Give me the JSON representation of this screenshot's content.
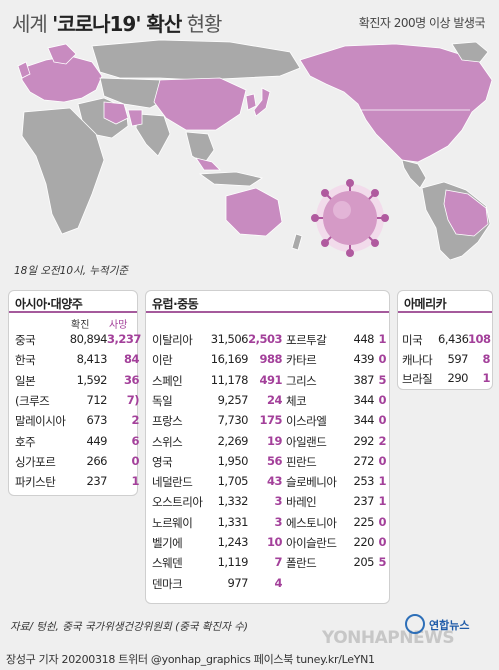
{
  "header": {
    "title_prefix": "세계 ",
    "title_main": "'코로나19' 확산",
    "title_suffix": " 현황",
    "subtitle": "확진자 200명 이상 발생국"
  },
  "date_note": "18일 오전10시, 누적기준",
  "colors": {
    "accent": "#a3409a",
    "map_highlight": "#c88bc0",
    "map_base": "#a9a9a9",
    "virus": "#b05a9f"
  },
  "asia": {
    "title": "아시아·대양주",
    "col_confirmed": "확진",
    "col_deaths": "사망",
    "rows": [
      {
        "name": "중국",
        "confirmed": "80,894",
        "deaths": "3,237"
      },
      {
        "name": "한국",
        "confirmed": "8,413",
        "deaths": "84"
      },
      {
        "name": "일본",
        "confirmed": "1,592",
        "deaths": "36"
      },
      {
        "name": "(크루즈",
        "confirmed": "712",
        "deaths": "7)"
      },
      {
        "name": "말레이시아",
        "confirmed": "673",
        "deaths": "2"
      },
      {
        "name": "호주",
        "confirmed": "449",
        "deaths": "6"
      },
      {
        "name": "싱가포르",
        "confirmed": "266",
        "deaths": "0"
      },
      {
        "name": "파키스탄",
        "confirmed": "237",
        "deaths": "1"
      }
    ]
  },
  "europe": {
    "title": "유럽·중동",
    "left": [
      {
        "name": "이탈리아",
        "confirmed": "31,506",
        "deaths": "2,503"
      },
      {
        "name": "이란",
        "confirmed": "16,169",
        "deaths": "988"
      },
      {
        "name": "스페인",
        "confirmed": "11,178",
        "deaths": "491"
      },
      {
        "name": "독일",
        "confirmed": "9,257",
        "deaths": "24"
      },
      {
        "name": "프랑스",
        "confirmed": "7,730",
        "deaths": "175"
      },
      {
        "name": "스위스",
        "confirmed": "2,269",
        "deaths": "19"
      },
      {
        "name": "영국",
        "confirmed": "1,950",
        "deaths": "56"
      },
      {
        "name": "네덜란드",
        "confirmed": "1,705",
        "deaths": "43"
      },
      {
        "name": "오스트리아",
        "confirmed": "1,332",
        "deaths": "3"
      },
      {
        "name": "노르웨이",
        "confirmed": "1,331",
        "deaths": "3"
      },
      {
        "name": "벨기에",
        "confirmed": "1,243",
        "deaths": "10"
      },
      {
        "name": "스웨덴",
        "confirmed": "1,119",
        "deaths": "7"
      },
      {
        "name": "덴마크",
        "confirmed": "977",
        "deaths": "4"
      }
    ],
    "right": [
      {
        "name": "포르투갈",
        "confirmed": "448",
        "deaths": "1"
      },
      {
        "name": "카타르",
        "confirmed": "439",
        "deaths": "0"
      },
      {
        "name": "그리스",
        "confirmed": "387",
        "deaths": "5"
      },
      {
        "name": "체코",
        "confirmed": "344",
        "deaths": "0"
      },
      {
        "name": "이스라엘",
        "confirmed": "344",
        "deaths": "0"
      },
      {
        "name": "아일랜드",
        "confirmed": "292",
        "deaths": "2"
      },
      {
        "name": "핀란드",
        "confirmed": "272",
        "deaths": "0"
      },
      {
        "name": "슬로베니아",
        "confirmed": "253",
        "deaths": "1"
      },
      {
        "name": "바레인",
        "confirmed": "237",
        "deaths": "1"
      },
      {
        "name": "에스토니아",
        "confirmed": "225",
        "deaths": "0"
      },
      {
        "name": "아이슬란드",
        "confirmed": "220",
        "deaths": "0"
      },
      {
        "name": "폴란드",
        "confirmed": "205",
        "deaths": "5"
      }
    ]
  },
  "americas": {
    "title": "아메리카",
    "rows": [
      {
        "name": "미국",
        "confirmed": "6,436",
        "deaths": "108"
      },
      {
        "name": "캐나다",
        "confirmed": "597",
        "deaths": "8"
      },
      {
        "name": "브라질",
        "confirmed": "290",
        "deaths": "1"
      }
    ]
  },
  "source": "자료/ 텅쉰, 중국 국가위생건강위원회 (중국 확진자 수)",
  "logo_text": "연합뉴스",
  "watermark": "YONHAPNEWS",
  "footer": "장성구 기자  20200318 트위터 @yonhap_graphics  페이스북 tuney.kr/LeYN1"
}
